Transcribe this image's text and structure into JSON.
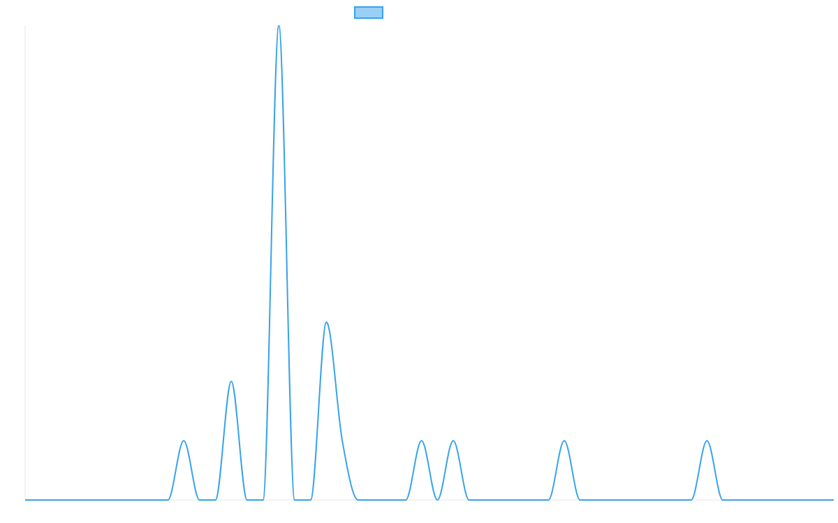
{
  "chart_data": {
    "type": "area",
    "title": "",
    "xlabel": "",
    "ylabel": "",
    "legend": {
      "position": "top-center",
      "entries": [
        {
          "name": "",
          "color": "#36a2eb",
          "fill": "#9ad0f5"
        }
      ]
    },
    "x_range": [
      0,
      51
    ],
    "y_range": [
      0,
      8
    ],
    "grid": false,
    "series": [
      {
        "name": "",
        "color": "#36a2eb",
        "x": [
          0,
          1,
          2,
          3,
          4,
          5,
          6,
          7,
          8,
          9,
          10,
          11,
          12,
          13,
          14,
          15,
          16,
          17,
          18,
          19,
          20,
          21,
          22,
          23,
          24,
          25,
          26,
          27,
          28,
          29,
          30,
          31,
          32,
          33,
          34,
          35,
          36,
          37,
          38,
          39,
          40,
          41,
          42,
          43,
          44,
          45,
          46,
          47,
          48,
          49,
          50,
          51
        ],
        "values": [
          0,
          0,
          0,
          0,
          0,
          0,
          0,
          0,
          0,
          0,
          1,
          0,
          0,
          2,
          0,
          0,
          8,
          0,
          0,
          3,
          1,
          0,
          0,
          0,
          0,
          1,
          0,
          1,
          0,
          0,
          0,
          0,
          0,
          0,
          1,
          0,
          0,
          0,
          0,
          0,
          0,
          0,
          0,
          1,
          0,
          0,
          0,
          0,
          0,
          0,
          0,
          0
        ]
      }
    ]
  }
}
